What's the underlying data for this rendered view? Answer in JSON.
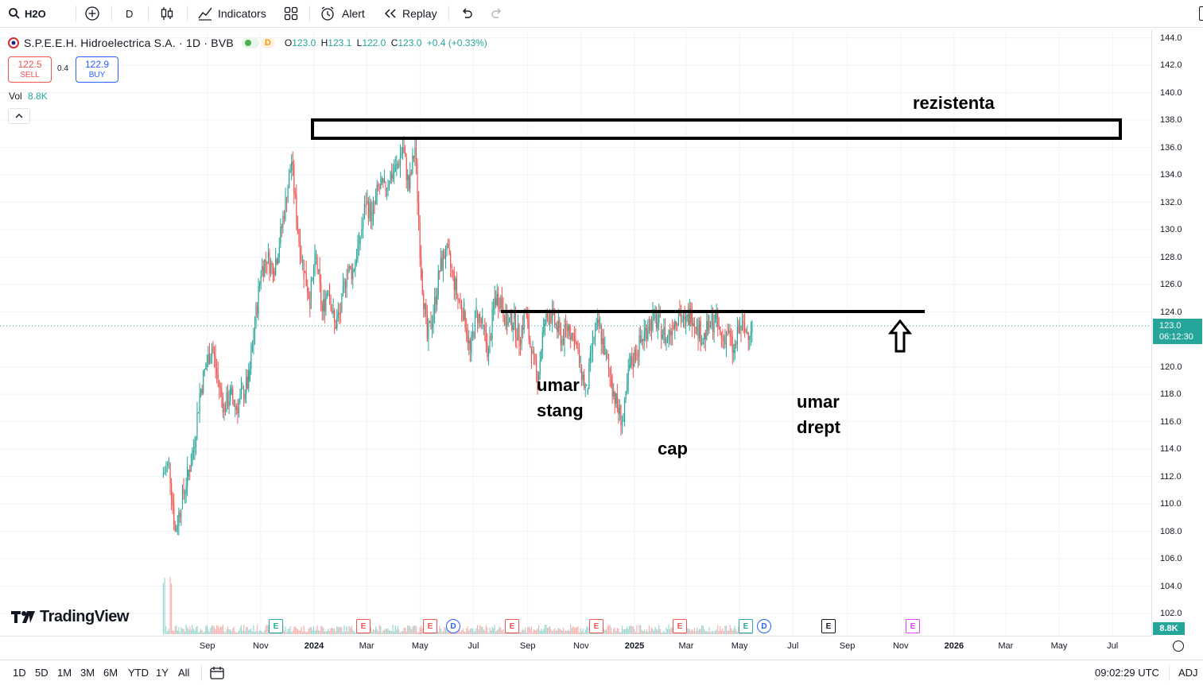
{
  "toolbar": {
    "symbol": "H2O",
    "interval": "D",
    "indicators_label": "Indicators",
    "alert_label": "Alert",
    "replay_label": "Replay"
  },
  "legend": {
    "title": "S.P.E.E.H. Hidroelectrica S.A. · 1D · BVB",
    "badge": "D",
    "o_label": "O",
    "o_val": "123.0",
    "h_label": "H",
    "h_val": "123.1",
    "l_label": "L",
    "l_val": "122.0",
    "c_label": "C",
    "c_val": "123.0",
    "change": "+0.4 (+0.33%)",
    "sell_price": "122.5",
    "sell_label": "SELL",
    "spread": "0.4",
    "buy_price": "122.9",
    "buy_label": "BUY",
    "vol_label": "Vol",
    "vol_val": "8.8K"
  },
  "annotations": {
    "resistance": "rezistenta",
    "left_shoulder_1": "umar",
    "left_shoulder_2": "stang",
    "head": "cap",
    "right_shoulder_1": "umar",
    "right_shoulder_2": "drept"
  },
  "price_axis": {
    "ticks": [
      "144.0",
      "142.0",
      "140.0",
      "138.0",
      "136.0",
      "134.0",
      "132.0",
      "130.0",
      "128.0",
      "126.0",
      "124.0",
      "120.0",
      "118.0",
      "116.0",
      "114.0",
      "112.0",
      "110.0",
      "108.0",
      "106.0",
      "104.0",
      "102.0"
    ],
    "current_price": "123.0",
    "countdown": "06:12:30",
    "volume_label": "8.8K"
  },
  "time_axis": {
    "ticks": [
      "Sep",
      "Nov",
      "2024",
      "Mar",
      "May",
      "Jul",
      "Sep",
      "Nov",
      "2025",
      "Mar",
      "May",
      "Jul",
      "Sep",
      "Nov",
      "2026",
      "Mar",
      "May",
      "Jul"
    ]
  },
  "events": [
    "E",
    "E",
    "E",
    "D",
    "E",
    "E",
    "E",
    "E",
    "D",
    "E",
    "E"
  ],
  "branding": "TradingView",
  "bottombar": {
    "ranges": [
      "1D",
      "5D",
      "1M",
      "3M",
      "6M",
      "YTD",
      "1Y",
      "All"
    ],
    "time": "09:02:29 UTC",
    "adj": "ADJ"
  },
  "colors": {
    "up": "#26a69a",
    "down": "#ef5350",
    "accent": "#2962ff"
  },
  "chart_data": {
    "type": "candlestick",
    "ylim": [
      101,
      145
    ],
    "xlabel": "",
    "ylabel": "",
    "series": [
      {
        "points": [
          [
            "2023-07-12",
            112
          ],
          [
            "2023-07-20",
            113
          ],
          [
            "2023-07-27",
            108
          ],
          [
            "2023-08-03",
            110
          ],
          [
            "2023-08-10",
            112
          ],
          [
            "2023-08-17",
            114
          ],
          [
            "2023-08-24",
            118
          ],
          [
            "2023-08-31",
            120
          ],
          [
            "2023-09-07",
            121.5
          ],
          [
            "2023-09-14",
            119
          ],
          [
            "2023-09-21",
            117
          ],
          [
            "2023-09-28",
            118
          ],
          [
            "2023-10-05",
            117
          ],
          [
            "2023-10-12",
            118
          ],
          [
            "2023-10-19",
            119
          ],
          [
            "2023-10-26",
            123
          ],
          [
            "2023-11-02",
            127
          ],
          [
            "2023-11-09",
            128
          ],
          [
            "2023-11-16",
            127
          ],
          [
            "2023-11-23",
            129
          ],
          [
            "2023-11-30",
            132
          ],
          [
            "2023-12-07",
            135
          ],
          [
            "2023-12-14",
            130
          ],
          [
            "2023-12-21",
            127
          ],
          [
            "2023-12-28",
            125
          ],
          [
            "2024-01-04",
            128
          ],
          [
            "2024-01-11",
            124
          ],
          [
            "2024-01-18",
            126
          ],
          [
            "2024-01-25",
            123
          ],
          [
            "2024-02-01",
            124
          ],
          [
            "2024-02-08",
            127
          ],
          [
            "2024-02-15",
            127
          ],
          [
            "2024-02-22",
            129
          ],
          [
            "2024-03-01",
            132
          ],
          [
            "2024-03-08",
            131
          ],
          [
            "2024-03-15",
            133
          ],
          [
            "2024-03-22",
            133
          ],
          [
            "2024-03-29",
            134
          ],
          [
            "2024-04-05",
            134.5
          ],
          [
            "2024-04-12",
            136
          ],
          [
            "2024-04-19",
            133
          ],
          [
            "2024-04-26",
            136
          ],
          [
            "2024-05-03",
            127
          ],
          [
            "2024-05-10",
            122
          ],
          [
            "2024-05-17",
            124
          ],
          [
            "2024-05-24",
            127
          ],
          [
            "2024-05-31",
            128.5
          ],
          [
            "2024-06-07",
            127
          ],
          [
            "2024-06-14",
            125
          ],
          [
            "2024-06-21",
            124
          ],
          [
            "2024-06-28",
            121
          ],
          [
            "2024-07-05",
            124
          ],
          [
            "2024-07-12",
            123
          ],
          [
            "2024-07-19",
            121
          ],
          [
            "2024-07-26",
            125
          ],
          [
            "2024-08-02",
            125
          ],
          [
            "2024-08-09",
            123
          ],
          [
            "2024-08-16",
            123.5
          ],
          [
            "2024-08-23",
            122
          ],
          [
            "2024-08-30",
            124
          ],
          [
            "2024-09-06",
            121
          ],
          [
            "2024-09-13",
            119
          ],
          [
            "2024-09-20",
            123
          ],
          [
            "2024-09-27",
            124
          ],
          [
            "2024-10-04",
            123
          ],
          [
            "2024-10-11",
            122
          ],
          [
            "2024-10-18",
            123
          ],
          [
            "2024-10-25",
            122
          ],
          [
            "2024-11-01",
            120
          ],
          [
            "2024-11-08",
            118
          ],
          [
            "2024-11-15",
            122
          ],
          [
            "2024-11-22",
            123
          ],
          [
            "2024-11-29",
            121
          ],
          [
            "2024-12-06",
            119
          ],
          [
            "2024-12-13",
            117
          ],
          [
            "2024-12-20",
            116
          ],
          [
            "2024-12-27",
            120
          ],
          [
            "2025-01-03",
            121
          ],
          [
            "2025-01-10",
            122
          ],
          [
            "2025-01-17",
            123
          ],
          [
            "2025-01-24",
            123.5
          ],
          [
            "2025-01-31",
            123
          ],
          [
            "2025-02-07",
            122
          ],
          [
            "2025-02-14",
            123
          ],
          [
            "2025-02-21",
            124
          ],
          [
            "2025-02-28",
            123
          ],
          [
            "2025-03-07",
            124
          ],
          [
            "2025-03-14",
            123
          ],
          [
            "2025-03-21",
            122
          ],
          [
            "2025-03-28",
            123
          ],
          [
            "2025-04-04",
            123.5
          ],
          [
            "2025-04-11",
            122
          ],
          [
            "2025-04-18",
            122.5
          ],
          [
            "2025-04-25",
            121
          ],
          [
            "2025-05-02",
            123
          ],
          [
            "2025-05-09",
            122.5
          ],
          [
            "2025-05-16",
            123
          ]
        ]
      }
    ]
  }
}
